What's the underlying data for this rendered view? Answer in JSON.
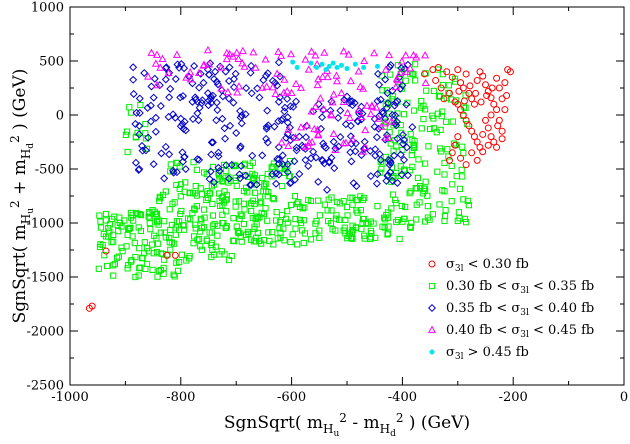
{
  "chart_data": {
    "type": "scatter",
    "x_axis": {
      "range": [
        -1000,
        0
      ],
      "ticks": [
        -1000,
        -800,
        -600,
        -400,
        -200,
        0
      ],
      "tick_labels": [
        "-1000",
        "-800",
        "-600",
        "-400",
        "-200",
        "0"
      ],
      "label_parts": [
        "SgnSqrt( m",
        "H",
        "u",
        "2",
        " - m",
        "H",
        "d",
        "2",
        " ) (GeV)"
      ]
    },
    "y_axis": {
      "range": [
        -2500,
        1000
      ],
      "ticks": [
        -2500,
        -2000,
        -1500,
        -1000,
        -500,
        0,
        500,
        1000
      ],
      "tick_labels": [
        "-2500",
        "-2000",
        "-1500",
        "-1000",
        "-500",
        "0",
        "500",
        "1000"
      ],
      "label_parts": [
        "SgnSqrt( m",
        "H",
        "u",
        "2",
        " + m",
        "H",
        "d",
        "2",
        " ) (GeV)"
      ]
    },
    "legend_position": "bottom-right",
    "series": [
      {
        "name": "σ3l < 0.30 fb",
        "legend_parts": [
          "σ",
          "3l",
          " < 0.30 fb"
        ],
        "marker": "circle",
        "color": "#ff0000",
        "points": [
          [
            -965,
            -1790
          ],
          [
            -960,
            -1770
          ],
          [
            -935,
            -1260
          ],
          [
            -825,
            -1300
          ],
          [
            -810,
            -1300
          ],
          [
            -360,
            380
          ],
          [
            -345,
            420
          ],
          [
            -335,
            440
          ],
          [
            -320,
            400
          ],
          [
            -310,
            350
          ],
          [
            -300,
            420
          ],
          [
            -295,
            300
          ],
          [
            -290,
            250
          ],
          [
            -285,
            380
          ],
          [
            -280,
            200
          ],
          [
            -275,
            150
          ],
          [
            -270,
            100
          ],
          [
            -265,
            320
          ],
          [
            -260,
            400
          ],
          [
            -255,
            360
          ],
          [
            -250,
            280
          ],
          [
            -245,
            220
          ],
          [
            -240,
            160
          ],
          [
            -235,
            100
          ],
          [
            -230,
            340
          ],
          [
            -225,
            250
          ],
          [
            -220,
            150
          ],
          [
            -215,
            300
          ],
          [
            -210,
            420
          ],
          [
            -205,
            400
          ],
          [
            -300,
            100
          ],
          [
            -295,
            50
          ],
          [
            -290,
            0
          ],
          [
            -285,
            -50
          ],
          [
            -280,
            -100
          ],
          [
            -275,
            -150
          ],
          [
            -270,
            -200
          ],
          [
            -265,
            -250
          ],
          [
            -260,
            -300
          ],
          [
            -255,
            -340
          ],
          [
            -250,
            -50
          ],
          [
            -245,
            -120
          ],
          [
            -240,
            -200
          ],
          [
            -235,
            -250
          ],
          [
            -230,
            -300
          ],
          [
            -300,
            -200
          ],
          [
            -305,
            -280
          ],
          [
            -310,
            -350
          ],
          [
            -315,
            -420
          ],
          [
            -295,
            -400
          ],
          [
            -285,
            -460
          ],
          [
            -275,
            -350
          ],
          [
            -265,
            -420
          ],
          [
            -255,
            -180
          ],
          [
            -245,
            -280
          ],
          [
            -240,
            0
          ],
          [
            -230,
            50
          ],
          [
            -225,
            -50
          ],
          [
            -220,
            -150
          ],
          [
            -215,
            50
          ],
          [
            -325,
            150
          ],
          [
            -330,
            250
          ],
          [
            -340,
            320
          ],
          [
            -315,
            200
          ],
          [
            -305,
            120
          ],
          [
            -298,
            220
          ],
          [
            -288,
            130
          ],
          [
            -278,
            270
          ],
          [
            -268,
            200
          ],
          [
            -258,
            120
          ],
          [
            -248,
            180
          ],
          [
            -238,
            250
          ],
          [
            -228,
            -100
          ],
          [
            -220,
            -220
          ],
          [
            -212,
            180
          ]
        ]
      },
      {
        "name": "0.30 fb < σ3l < 0.35 fb",
        "legend_parts": [
          "0.30 fb < σ",
          "3l",
          " < 0.35 fb"
        ],
        "marker": "square",
        "color": "#00ee00",
        "points": []
      },
      {
        "name": "0.35 fb < σ3l < 0.40 fb",
        "legend_parts": [
          "0.35 fb < σ",
          "3l",
          " < 0.40 fb"
        ],
        "marker": "diamond",
        "color": "#0000cc",
        "points": []
      },
      {
        "name": "0.40 fb < σ3l < 0.45 fb",
        "legend_parts": [
          "0.40 fb < σ",
          "3l",
          " < 0.45 fb"
        ],
        "marker": "triangle",
        "color": "#ff00ff",
        "points": []
      },
      {
        "name": "σ3l > 0.45 fb",
        "legend_parts": [
          "σ",
          "3l",
          " > 0.45 fb"
        ],
        "marker": "star",
        "color": "#00e5ee",
        "points": [
          [
            -598,
            490
          ],
          [
            -590,
            440
          ],
          [
            -565,
            480
          ],
          [
            -555,
            440
          ],
          [
            -545,
            470
          ],
          [
            -538,
            420
          ],
          [
            -532,
            450
          ],
          [
            -525,
            480
          ],
          [
            -518,
            440
          ],
          [
            -510,
            460
          ],
          [
            -500,
            430
          ],
          [
            -485,
            470
          ],
          [
            -470,
            440
          ],
          [
            -445,
            450
          ]
        ]
      }
    ],
    "generated_series_regions": [
      {
        "series_index": 1,
        "count": 640,
        "seed": 17,
        "x_range": [
          -950,
          -280
        ],
        "y_band": "lower",
        "note": "dense green band (lower body, plus right column)"
      },
      {
        "series_index": 2,
        "count": 330,
        "seed": 29,
        "x_range": [
          -890,
          -380
        ],
        "y_band": "middle"
      },
      {
        "series_index": 3,
        "count": 130,
        "seed": 43,
        "x_range": [
          -870,
          -350
        ],
        "y_band": "upper"
      }
    ]
  }
}
